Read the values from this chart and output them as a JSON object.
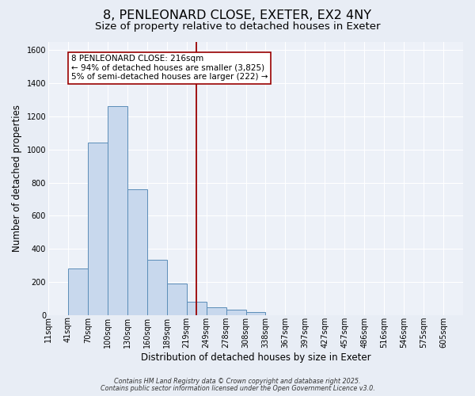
{
  "title": "8, PENLEONARD CLOSE, EXETER, EX2 4NY",
  "subtitle": "Size of property relative to detached houses in Exeter",
  "xlabel": "Distribution of detached houses by size in Exeter",
  "ylabel": "Number of detached properties",
  "bar_labels": [
    "11sqm",
    "41sqm",
    "70sqm",
    "100sqm",
    "130sqm",
    "160sqm",
    "189sqm",
    "219sqm",
    "249sqm",
    "278sqm",
    "308sqm",
    "338sqm",
    "367sqm",
    "397sqm",
    "427sqm",
    "457sqm",
    "486sqm",
    "516sqm",
    "546sqm",
    "575sqm",
    "605sqm"
  ],
  "bar_values": [
    0,
    280,
    1040,
    1260,
    760,
    335,
    190,
    80,
    50,
    32,
    18,
    0,
    0,
    0,
    0,
    0,
    0,
    0,
    0,
    0,
    0
  ],
  "bar_color": "#c8d8ed",
  "bar_edgecolor": "#5b8db8",
  "vline_x_index": 7,
  "vline_color": "#990000",
  "ylim": [
    0,
    1650
  ],
  "yticks": [
    0,
    200,
    400,
    600,
    800,
    1000,
    1200,
    1400,
    1600
  ],
  "annotation_title": "8 PENLEONARD CLOSE: 216sqm",
  "annotation_line1": "← 94% of detached houses are smaller (3,825)",
  "annotation_line2": "5% of semi-detached houses are larger (222) →",
  "bg_color": "#e8edf5",
  "plot_bg_color": "#edf1f8",
  "footer1": "Contains HM Land Registry data © Crown copyright and database right 2025.",
  "footer2": "Contains public sector information licensed under the Open Government Licence v3.0.",
  "grid_color": "#ffffff",
  "title_fontsize": 11.5,
  "subtitle_fontsize": 9.5,
  "axis_label_fontsize": 8.5,
  "tick_fontsize": 7,
  "annotation_box_edgecolor": "#990000",
  "annotation_fontsize": 7.5
}
